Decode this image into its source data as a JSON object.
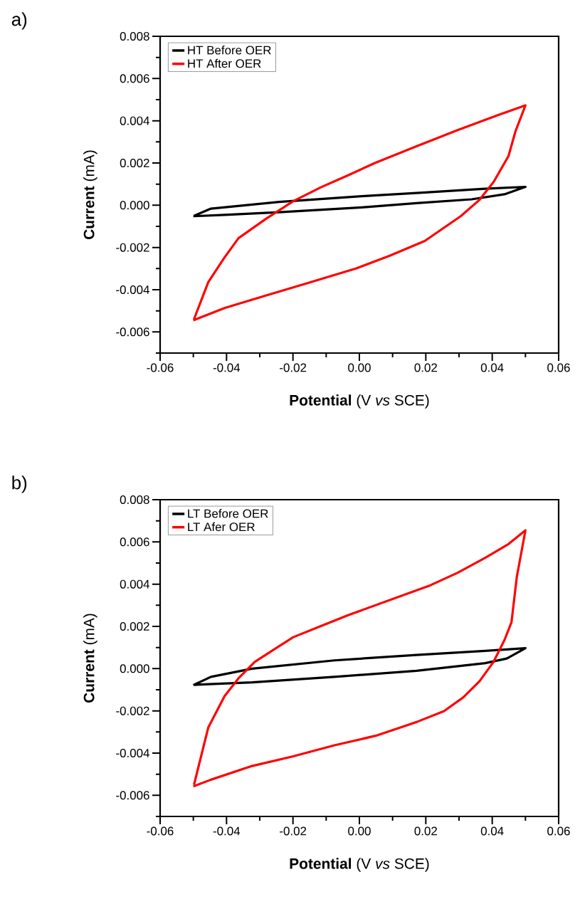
{
  "chart_data": [
    {
      "type": "line",
      "title": "a)",
      "xlabel": "**Potential** (V *vs* SCE)",
      "ylabel": "**Current** (mA)",
      "xlim": [
        -0.06,
        0.06
      ],
      "ylim": [
        -0.007,
        0.008
      ],
      "xticks": [
        {
          "value": -0.06,
          "label": "-0.06"
        },
        {
          "value": -0.05,
          "label": null
        },
        {
          "value": -0.04,
          "label": "-0.04"
        },
        {
          "value": -0.03,
          "label": null
        },
        {
          "value": -0.02,
          "label": "-0.02"
        },
        {
          "value": -0.01,
          "label": null
        },
        {
          "value": 0,
          "label": "0.00"
        },
        {
          "value": 0.01,
          "label": null
        },
        {
          "value": 0.02,
          "label": "0.02"
        },
        {
          "value": 0.03,
          "label": null
        },
        {
          "value": 0.04,
          "label": "0.04"
        },
        {
          "value": 0.05,
          "label": null
        },
        {
          "value": 0.06,
          "label": "0.06"
        }
      ],
      "yticks": [
        {
          "value": -0.007,
          "label": null
        },
        {
          "value": -0.006,
          "label": "-0.006"
        },
        {
          "value": -0.005,
          "label": null
        },
        {
          "value": -0.004,
          "label": "-0.004"
        },
        {
          "value": -0.003,
          "label": null
        },
        {
          "value": -0.002,
          "label": "-0.002"
        },
        {
          "value": -0.001,
          "label": null
        },
        {
          "value": 0,
          "label": "0.000"
        },
        {
          "value": 0.001,
          "label": null
        },
        {
          "value": 0.002,
          "label": "0.002"
        },
        {
          "value": 0.003,
          "label": null
        },
        {
          "value": 0.004,
          "label": "0.004"
        },
        {
          "value": 0.005,
          "label": null
        },
        {
          "value": 0.006,
          "label": "0.006"
        },
        {
          "value": 0.007,
          "label": null
        },
        {
          "value": 0.008,
          "label": "0.008"
        }
      ],
      "legend": "top left",
      "series": [
        {
          "name": "HT Before OER",
          "color": "#000000",
          "x": [
            -0.05,
            -0.0406,
            -0.0241,
            0.0007,
            0.0172,
            0.0338,
            0.0437,
            0.05,
            0.0379,
            0.0172,
            0.0007,
            -0.0241,
            -0.0447,
            -0.0498
          ],
          "values": [
            -0.00052,
            -0.00046,
            -0.00033,
            -0.0001,
            0.0001,
            0.00028,
            0.00052,
            0.00087,
            0.00078,
            0.00058,
            0.00043,
            0.00016,
            -0.00016,
            -0.0005
          ]
        },
        {
          "name": "HT After OER",
          "color": "#ff0000",
          "x": [
            -0.05,
            -0.0406,
            -0.0282,
            -0.0158,
            -0.0009,
            0.009,
            0.0197,
            0.0305,
            0.0362,
            0.0404,
            0.0449,
            0.047,
            0.05,
            0.042,
            0.0296,
            0.0172,
            0.0048,
            -0.0034,
            -0.0117,
            -0.0199,
            -0.0282,
            -0.0364,
            -0.0406,
            -0.0455,
            -0.0498
          ],
          "values": [
            -0.00545,
            -0.00487,
            -0.00428,
            -0.0037,
            -0.00299,
            -0.0024,
            -0.00169,
            -0.00052,
            0.00026,
            0.0011,
            0.00233,
            0.0035,
            0.00473,
            0.00428,
            0.00356,
            0.00279,
            0.00201,
            0.00142,
            0.00084,
            0.00019,
            -0.00065,
            -0.00156,
            -0.00247,
            -0.00364,
            -0.0054
          ]
        }
      ]
    },
    {
      "type": "line",
      "title": "b)",
      "xlabel": "**Potential** (V *vs* SCE)",
      "ylabel": "**Current** (mA)",
      "xlim": [
        -0.06,
        0.06
      ],
      "ylim": [
        -0.007,
        0.008
      ],
      "xticks": [
        {
          "value": -0.06,
          "label": "-0.06"
        },
        {
          "value": -0.05,
          "label": null
        },
        {
          "value": -0.04,
          "label": "-0.04"
        },
        {
          "value": -0.03,
          "label": null
        },
        {
          "value": -0.02,
          "label": "-0.02"
        },
        {
          "value": -0.01,
          "label": null
        },
        {
          "value": 0,
          "label": "0.00"
        },
        {
          "value": 0.01,
          "label": null
        },
        {
          "value": 0.02,
          "label": "0.02"
        },
        {
          "value": 0.03,
          "label": null
        },
        {
          "value": 0.04,
          "label": "0.04"
        },
        {
          "value": 0.05,
          "label": null
        },
        {
          "value": 0.06,
          "label": "0.06"
        }
      ],
      "yticks": [
        {
          "value": -0.007,
          "label": null
        },
        {
          "value": -0.006,
          "label": "-0.006"
        },
        {
          "value": -0.005,
          "label": null
        },
        {
          "value": -0.004,
          "label": "-0.004"
        },
        {
          "value": -0.003,
          "label": null
        },
        {
          "value": -0.002,
          "label": "-0.002"
        },
        {
          "value": -0.001,
          "label": null
        },
        {
          "value": 0,
          "label": "0.000"
        },
        {
          "value": 0.001,
          "label": null
        },
        {
          "value": 0.002,
          "label": "0.002"
        },
        {
          "value": 0.003,
          "label": null
        },
        {
          "value": 0.004,
          "label": "0.004"
        },
        {
          "value": 0.005,
          "label": null
        },
        {
          "value": 0.006,
          "label": "0.006"
        },
        {
          "value": 0.007,
          "label": null
        },
        {
          "value": 0.008,
          "label": "0.008"
        }
      ],
      "legend": "top left",
      "series": [
        {
          "name": "LT Before OER",
          "color": "#000000",
          "x": [
            -0.05,
            -0.0447,
            -0.0323,
            -0.0075,
            0.0172,
            0.0379,
            0.05,
            0.0444,
            0.0379,
            0.0172,
            -0.0075,
            -0.0323,
            -0.0464,
            -0.0498
          ],
          "values": [
            -0.00078,
            -0.00039,
            0,
            0.00039,
            0.00065,
            0.00084,
            0.00097,
            0.00048,
            0.00026,
            -0.0001,
            -0.00039,
            -0.00065,
            -0.00074,
            -0.00077
          ]
        },
        {
          "name": "LT Afer OER",
          "color": "#ff0000",
          "x": [
            -0.05,
            -0.0447,
            -0.0323,
            -0.0199,
            -0.0075,
            0.0049,
            0.0172,
            0.0255,
            0.0313,
            0.0362,
            0.0404,
            0.0437,
            0.0458,
            0.0474,
            0.05,
            0.0449,
            0.0379,
            0.0296,
            0.0214,
            0.009,
            -0.0034,
            -0.0117,
            -0.0199,
            -0.0257,
            -0.0315,
            -0.0364,
            -0.0406,
            -0.0455,
            -0.0498
          ],
          "values": [
            -0.00558,
            -0.00526,
            -0.00461,
            -0.00415,
            -0.00363,
            -0.00318,
            -0.00253,
            -0.00201,
            -0.00136,
            -0.00059,
            0.00032,
            0.00136,
            0.0022,
            0.00434,
            0.00655,
            0.0059,
            0.00525,
            0.00454,
            0.00395,
            0.00324,
            0.00253,
            0.00201,
            0.00149,
            0.00091,
            0.00032,
            -0.00046,
            -0.0013,
            -0.00279,
            -0.0055
          ]
        }
      ]
    }
  ]
}
